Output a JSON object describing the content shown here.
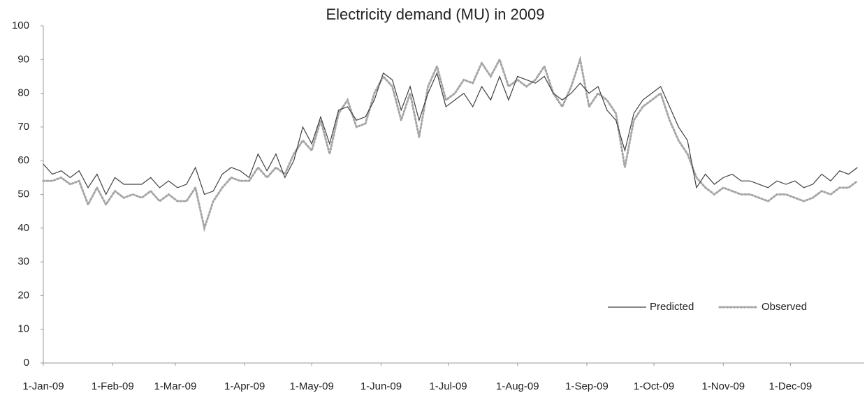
{
  "chart_data": {
    "type": "line",
    "title": "Electricity demand (MU) in 2009",
    "x": [
      0,
      4,
      8,
      12,
      16,
      20,
      24,
      28,
      32,
      36,
      40,
      44,
      48,
      52,
      56,
      60,
      64,
      68,
      72,
      76,
      80,
      84,
      88,
      92,
      96,
      100,
      104,
      108,
      112,
      116,
      120,
      124,
      128,
      132,
      136,
      140,
      144,
      148,
      152,
      156,
      160,
      164,
      168,
      172,
      176,
      180,
      184,
      188,
      192,
      196,
      200,
      204,
      208,
      212,
      216,
      220,
      224,
      228,
      232,
      236,
      240,
      244,
      248,
      252,
      256,
      260,
      264,
      268,
      272,
      276,
      280,
      284,
      288,
      292,
      296,
      300,
      304,
      308,
      312,
      316,
      320,
      324,
      328,
      332,
      336,
      340,
      344,
      348,
      352,
      356,
      360,
      364
    ],
    "series": [
      {
        "name": "Predicted",
        "color": "#404040",
        "style": "solid",
        "values": [
          59,
          56,
          57,
          55,
          57,
          52,
          56,
          50,
          55,
          53,
          53,
          53,
          55,
          52,
          54,
          52,
          53,
          58,
          50,
          51,
          56,
          58,
          57,
          55,
          62,
          57,
          62,
          55,
          60,
          70,
          65,
          73,
          65,
          75,
          76,
          72,
          73,
          78,
          86,
          84,
          75,
          82,
          72,
          80,
          86,
          76,
          78,
          80,
          76,
          82,
          78,
          85,
          78,
          85,
          84,
          83,
          85,
          80,
          78,
          80,
          83,
          80,
          82,
          75,
          72,
          63,
          74,
          78,
          80,
          82,
          76,
          70,
          66,
          52,
          56,
          53,
          55,
          56,
          54,
          54,
          53,
          52,
          54,
          53,
          54,
          52,
          53,
          56,
          54,
          57,
          56,
          58
        ]
      },
      {
        "name": "Observed",
        "color": "#a6a6a6",
        "style": "dotted",
        "values": [
          54,
          54,
          55,
          53,
          54,
          47,
          52,
          47,
          51,
          49,
          50,
          49,
          51,
          48,
          50,
          48,
          48,
          52,
          40,
          48,
          52,
          55,
          54,
          54,
          58,
          55,
          58,
          56,
          62,
          66,
          63,
          72,
          62,
          74,
          78,
          70,
          71,
          80,
          85,
          82,
          72,
          80,
          67,
          82,
          88,
          78,
          80,
          84,
          83,
          89,
          85,
          90,
          82,
          84,
          82,
          84,
          88,
          80,
          76,
          82,
          90,
          76,
          80,
          78,
          74,
          58,
          72,
          76,
          78,
          80,
          72,
          66,
          62,
          55,
          52,
          50,
          52,
          51,
          50,
          50,
          49,
          48,
          50,
          50,
          49,
          48,
          49,
          51,
          50,
          52,
          52,
          54
        ]
      }
    ],
    "xlim": [
      0,
      367
    ],
    "xticks": [
      {
        "value": 0,
        "label": "1-Jan-09"
      },
      {
        "value": 31,
        "label": "1-Feb-09"
      },
      {
        "value": 59,
        "label": "1-Mar-09"
      },
      {
        "value": 90,
        "label": "1-Apr-09"
      },
      {
        "value": 120,
        "label": "1-May-09"
      },
      {
        "value": 151,
        "label": "1-Jun-09"
      },
      {
        "value": 181,
        "label": "1-Jul-09"
      },
      {
        "value": 212,
        "label": "1-Aug-09"
      },
      {
        "value": 243,
        "label": "1-Sep-09"
      },
      {
        "value": 273,
        "label": "1-Oct-09"
      },
      {
        "value": 304,
        "label": "1-Nov-09"
      },
      {
        "value": 334,
        "label": "1-Dec-09"
      }
    ],
    "ylim": [
      0,
      100
    ],
    "yticks": [
      0,
      10,
      20,
      30,
      40,
      50,
      60,
      70,
      80,
      90,
      100
    ],
    "grid": false,
    "legend": "lower right"
  }
}
